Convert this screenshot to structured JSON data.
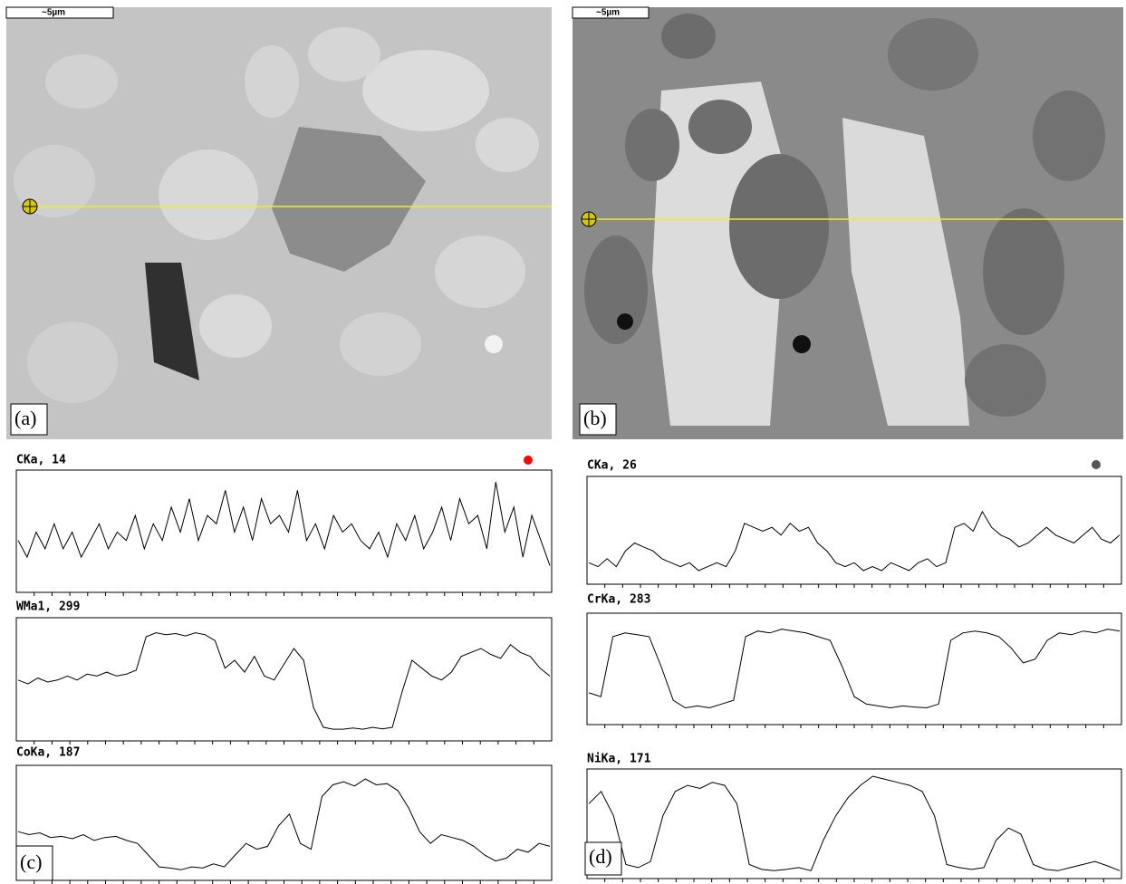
{
  "images": [
    {
      "scale_bar": "~5µm",
      "label": "(a)"
    },
    {
      "scale_bar": "~5µm",
      "label": "(b)"
    }
  ],
  "plot_labels": [
    "(c)",
    "(d)"
  ],
  "chart_data": [
    {
      "type": "line",
      "title": "CKa, 14",
      "ylim": [
        0,
        14
      ],
      "color": "#000000",
      "values": [
        6,
        4,
        7,
        5,
        8,
        5,
        7,
        4,
        6,
        8,
        5,
        7,
        6,
        9,
        5,
        8,
        6,
        10,
        7,
        11,
        6,
        9,
        8,
        12,
        7,
        10,
        6,
        11,
        8,
        9,
        7,
        12,
        6,
        8,
        5,
        9,
        7,
        8,
        6,
        5,
        7,
        4,
        8,
        6,
        9,
        5,
        7,
        10,
        6,
        11,
        8,
        9,
        5,
        13,
        7,
        10,
        4,
        9,
        6,
        3
      ]
    },
    {
      "type": "line",
      "title": "WMa1, 299",
      "ylim": [
        0,
        299
      ],
      "color": "#000000",
      "values": [
        150,
        140,
        155,
        145,
        150,
        160,
        150,
        165,
        160,
        170,
        160,
        165,
        175,
        260,
        270,
        265,
        268,
        262,
        270,
        265,
        250,
        180,
        200,
        170,
        210,
        160,
        150,
        190,
        230,
        200,
        80,
        30,
        25,
        25,
        28,
        25,
        30,
        26,
        30,
        120,
        200,
        180,
        160,
        150,
        170,
        210,
        220,
        230,
        215,
        205,
        240,
        220,
        210,
        180,
        160
      ]
    },
    {
      "type": "line",
      "title": "CoKa, 187",
      "ylim": [
        0,
        187
      ],
      "color": "#000000",
      "values": [
        80,
        75,
        78,
        70,
        72,
        68,
        75,
        65,
        70,
        72,
        65,
        60,
        40,
        20,
        18,
        15,
        20,
        18,
        25,
        20,
        40,
        60,
        50,
        55,
        90,
        110,
        60,
        50,
        140,
        160,
        165,
        158,
        170,
        160,
        162,
        150,
        120,
        80,
        60,
        75,
        70,
        65,
        55,
        40,
        30,
        35,
        50,
        45,
        60,
        55
      ]
    },
    {
      "type": "line",
      "title": "CKa, 26",
      "ylim": [
        0,
        26
      ],
      "color": "#000000",
      "values": [
        5,
        4,
        6,
        4,
        8,
        10,
        9,
        8,
        6,
        5,
        4,
        5,
        3,
        4,
        5,
        4,
        8,
        15,
        14,
        13,
        14,
        12,
        15,
        13,
        14,
        10,
        8,
        5,
        4,
        5,
        3,
        4,
        3,
        5,
        4,
        3,
        5,
        6,
        4,
        5,
        14,
        15,
        13,
        18,
        14,
        12,
        11,
        9,
        10,
        12,
        14,
        12,
        11,
        10,
        12,
        14,
        11,
        10,
        12
      ]
    },
    {
      "type": "line",
      "title": "CrKa, 283",
      "ylim": [
        0,
        283
      ],
      "color": "#000000",
      "values": [
        80,
        70,
        230,
        240,
        235,
        230,
        150,
        60,
        40,
        45,
        40,
        50,
        60,
        230,
        245,
        240,
        250,
        245,
        240,
        230,
        220,
        150,
        70,
        50,
        45,
        40,
        45,
        42,
        40,
        50,
        220,
        240,
        245,
        240,
        230,
        200,
        160,
        170,
        220,
        240,
        235,
        245,
        240,
        250,
        245
      ]
    },
    {
      "type": "line",
      "title": "NiKa, 171",
      "ylim": [
        0,
        171
      ],
      "color": "#000000",
      "values": [
        120,
        140,
        100,
        20,
        15,
        25,
        100,
        140,
        150,
        145,
        155,
        150,
        120,
        20,
        12,
        10,
        12,
        15,
        10,
        60,
        100,
        130,
        150,
        165,
        160,
        155,
        150,
        140,
        100,
        20,
        15,
        12,
        15,
        60,
        80,
        70,
        20,
        12,
        10,
        15,
        20,
        25,
        18,
        10
      ]
    }
  ]
}
